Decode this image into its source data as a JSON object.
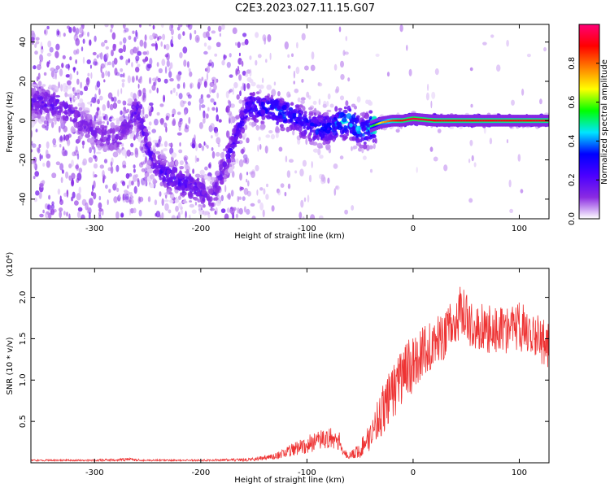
{
  "title": "C2E3.2023.027.11.15.G07",
  "chart_data": [
    {
      "type": "heatmap",
      "xlabel": "Height of straight line (km)",
      "ylabel": "Frequency (Hz)",
      "xlim": [
        -360,
        128
      ],
      "ylim": [
        -50,
        49
      ],
      "x_ticks": [
        -300,
        -200,
        -100,
        0,
        100
      ],
      "y_ticks": [
        -40,
        -20,
        0,
        20,
        40
      ],
      "grid": false,
      "colorbar": {
        "label": "Normalized spectral amplitude",
        "range": [
          0.0,
          1.0
        ],
        "ticks": [
          0.0,
          0.2,
          0.4,
          0.6,
          0.8
        ],
        "colormap": [
          "#ffffff",
          "#8a2be2",
          "#4b00ff",
          "#0000ff",
          "#00e5ff",
          "#00ff00",
          "#ffff00",
          "#ff7f00",
          "#ff0000",
          "#ff0077"
        ]
      },
      "ridge": {
        "x": [
          -345,
          -330,
          -300,
          -280,
          -260,
          -245,
          -230,
          -215,
          -200,
          -190,
          -155,
          -145,
          -130,
          -115,
          -100,
          -90,
          -80,
          -70,
          -60,
          -50,
          -45,
          -40,
          -30,
          -20,
          -10,
          0,
          20,
          60,
          100,
          128
        ],
        "y": [
          9,
          7,
          -6,
          -10,
          6,
          -22,
          -29,
          -32,
          -36,
          -40,
          8,
          6,
          5,
          3,
          -2,
          -4,
          -4,
          -1,
          0,
          -5,
          -6,
          -3,
          -1,
          0,
          0,
          1,
          0,
          0,
          0,
          0
        ],
        "peak_amplitude": [
          0.2,
          0.18,
          0.15,
          0.15,
          0.2,
          0.2,
          0.25,
          0.22,
          0.18,
          0.15,
          0.3,
          0.3,
          0.4,
          0.35,
          0.3,
          0.35,
          0.35,
          0.45,
          0.45,
          0.4,
          0.35,
          0.5,
          0.7,
          0.85,
          0.9,
          0.95,
          0.9,
          0.9,
          0.9,
          0.9
        ]
      }
    },
    {
      "type": "line",
      "xlabel": "Height of straight line (km)",
      "ylabel": "SNR (10 * v/v)",
      "y_multiplier_label": "(x10⁴)",
      "xlim": [
        -360,
        128
      ],
      "ylim": [
        0,
        2.35
      ],
      "x_ticks": [
        -300,
        -200,
        -100,
        0,
        100
      ],
      "y_ticks": [
        0.5,
        1.0,
        1.5,
        2.0
      ],
      "grid": false,
      "series": [
        {
          "color": "#ee3333",
          "x": [
            -360,
            -300,
            -270,
            -250,
            -200,
            -150,
            -130,
            -120,
            -110,
            -100,
            -90,
            -80,
            -70,
            -65,
            -60,
            -50,
            -40,
            -30,
            -20,
            -10,
            0,
            10,
            20,
            30,
            40,
            45,
            50,
            60,
            70,
            80,
            90,
            100,
            110,
            120,
            128
          ],
          "y": [
            0.03,
            0.03,
            0.04,
            0.03,
            0.03,
            0.04,
            0.08,
            0.12,
            0.18,
            0.22,
            0.26,
            0.3,
            0.28,
            0.12,
            0.08,
            0.15,
            0.35,
            0.6,
            0.85,
            1.05,
            1.2,
            1.35,
            1.45,
            1.55,
            1.7,
            1.85,
            1.75,
            1.65,
            1.6,
            1.62,
            1.6,
            1.65,
            1.6,
            1.5,
            1.4
          ],
          "spread": [
            0.01,
            0.01,
            0.02,
            0.01,
            0.01,
            0.02,
            0.04,
            0.06,
            0.09,
            0.11,
            0.12,
            0.13,
            0.12,
            0.05,
            0.05,
            0.1,
            0.2,
            0.3,
            0.35,
            0.35,
            0.35,
            0.3,
            0.3,
            0.3,
            0.3,
            0.3,
            0.3,
            0.3,
            0.3,
            0.3,
            0.3,
            0.3,
            0.3,
            0.3,
            0.3
          ]
        }
      ]
    }
  ]
}
